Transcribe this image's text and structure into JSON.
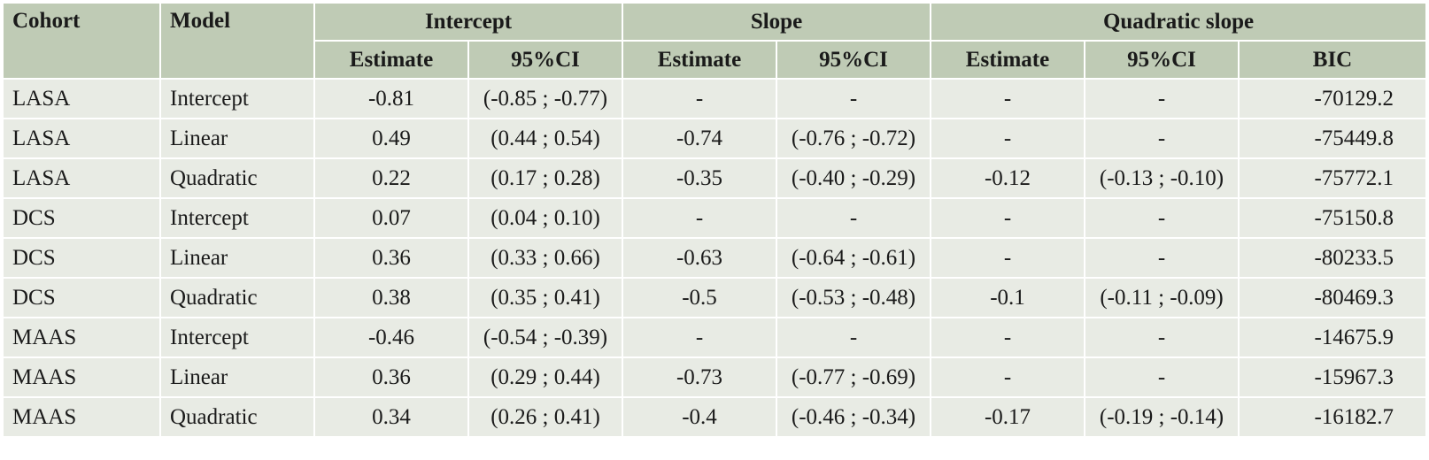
{
  "table": {
    "header_top": {
      "cohort": "Cohort",
      "model": "Model",
      "intercept": "Intercept",
      "slope": "Slope",
      "quadratic_slope": "Quadratic slope"
    },
    "header_sub": {
      "intercept_estimate": "Estimate",
      "intercept_ci": "95%CI",
      "slope_estimate": "Estimate",
      "slope_ci": "95%CI",
      "quad_estimate": "Estimate",
      "quad_ci": "95%CI",
      "bic": "BIC"
    },
    "rows": [
      {
        "cohort": "LASA",
        "model": "Intercept",
        "int_est": "-0.81",
        "int_ci": "(-0.85 ; -0.77)",
        "slope_est": "-",
        "slope_ci": "-",
        "quad_est": "-",
        "quad_ci": "-",
        "bic": "-70129.2"
      },
      {
        "cohort": "LASA",
        "model": "Linear",
        "int_est": "0.49",
        "int_ci": "(0.44 ; 0.54)",
        "slope_est": "-0.74",
        "slope_ci": "(-0.76 ; -0.72)",
        "quad_est": "-",
        "quad_ci": "-",
        "bic": "-75449.8"
      },
      {
        "cohort": "LASA",
        "model": "Quadratic",
        "int_est": "0.22",
        "int_ci": "(0.17 ; 0.28)",
        "slope_est": "-0.35",
        "slope_ci": "(-0.40 ; -0.29)",
        "quad_est": "-0.12",
        "quad_ci": "(-0.13 ; -0.10)",
        "bic": "-75772.1"
      },
      {
        "cohort": "DCS",
        "model": "Intercept",
        "int_est": "0.07",
        "int_ci": "(0.04 ; 0.10)",
        "slope_est": "-",
        "slope_ci": "-",
        "quad_est": "-",
        "quad_ci": "-",
        "bic": "-75150.8"
      },
      {
        "cohort": "DCS",
        "model": "Linear",
        "int_est": "0.36",
        "int_ci": "(0.33 ; 0.66)",
        "slope_est": "-0.63",
        "slope_ci": "(-0.64 ; -0.61)",
        "quad_est": "-",
        "quad_ci": "-",
        "bic": "-80233.5"
      },
      {
        "cohort": "DCS",
        "model": "Quadratic",
        "int_est": "0.38",
        "int_ci": "(0.35 ; 0.41)",
        "slope_est": "-0.5",
        "slope_ci": "(-0.53 ; -0.48)",
        "quad_est": "-0.1",
        "quad_ci": "(-0.11 ; -0.09)",
        "bic": "-80469.3"
      },
      {
        "cohort": "MAAS",
        "model": "Intercept",
        "int_est": "-0.46",
        "int_ci": "(-0.54 ; -0.39)",
        "slope_est": "-",
        "slope_ci": "-",
        "quad_est": "-",
        "quad_ci": "-",
        "bic": "-14675.9"
      },
      {
        "cohort": "MAAS",
        "model": "Linear",
        "int_est": "0.36",
        "int_ci": "(0.29 ; 0.44)",
        "slope_est": "-0.73",
        "slope_ci": "(-0.77 ; -0.69)",
        "quad_est": "-",
        "quad_ci": "-",
        "bic": "-15967.3"
      },
      {
        "cohort": "MAAS",
        "model": "Quadratic",
        "int_est": "0.34",
        "int_ci": "(0.26 ; 0.41)",
        "slope_est": "-0.4",
        "slope_ci": "(-0.46 ; -0.34)",
        "quad_est": "-0.17",
        "quad_ci": "(-0.19 ; -0.14)",
        "bic": "-16182.7"
      }
    ]
  },
  "colors": {
    "header_bg": "#bfcbb5",
    "body_bg": "#e8ebe4",
    "text": "#1a1a1a"
  }
}
